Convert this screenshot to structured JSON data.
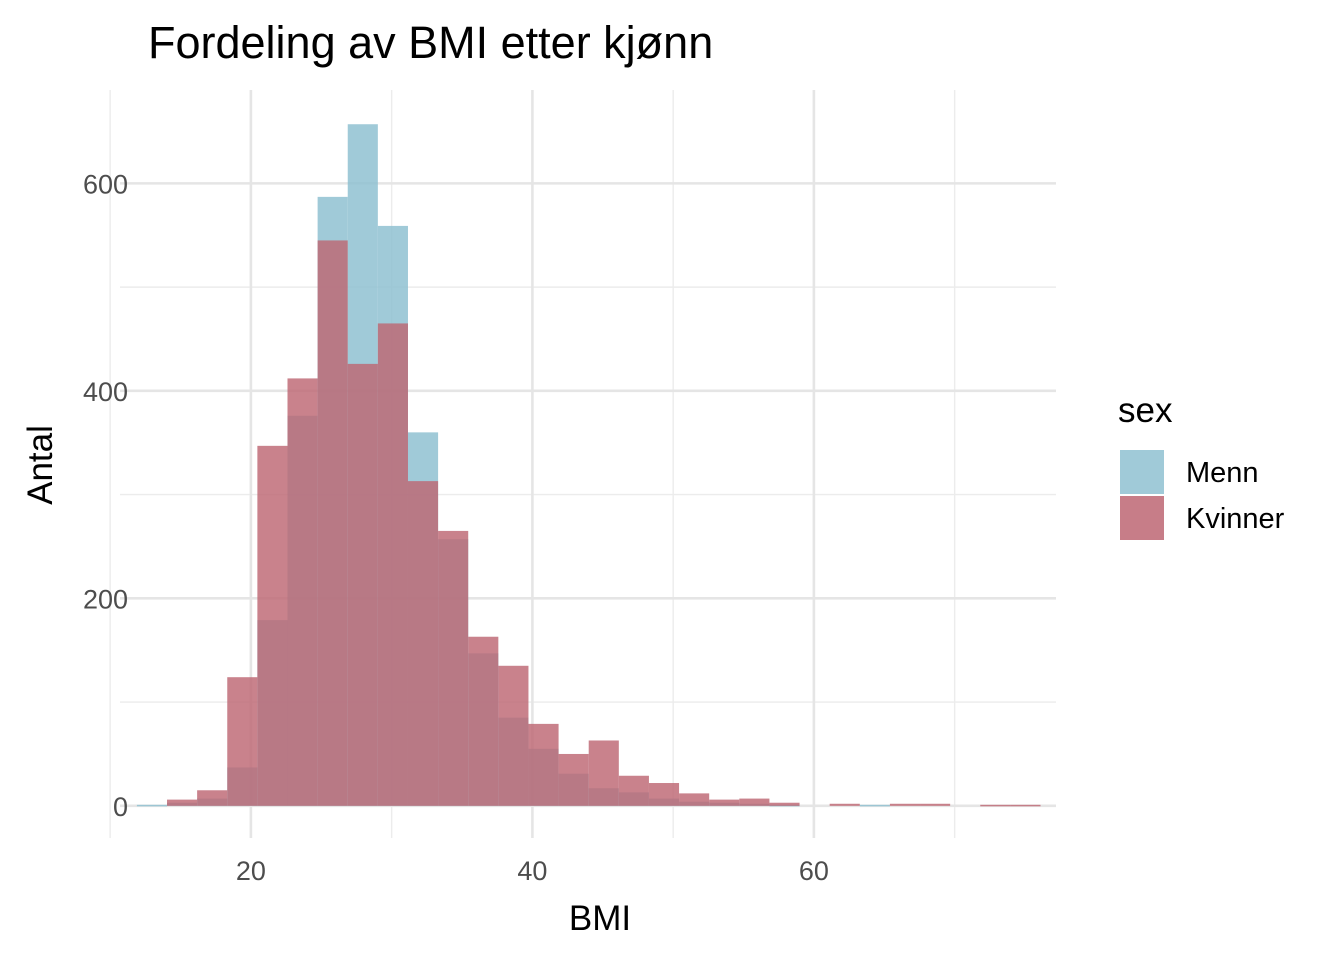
{
  "chart_data": {
    "type": "bar",
    "title": "Fordeling av BMI etter kjønn",
    "xlabel": "BMI",
    "ylabel": "Antal",
    "xlim": [
      10.7,
      77.2
    ],
    "ylim": [
      -31,
      690
    ],
    "x_ticks": [
      20,
      40,
      60
    ],
    "x_tick_labels": [
      "20",
      "40",
      "60"
    ],
    "y_ticks": [
      0,
      200,
      400,
      600
    ],
    "y_tick_labels": [
      "0",
      "200",
      "400",
      "600"
    ],
    "x_minor_ticks": [
      10,
      30,
      50,
      70
    ],
    "y_minor_ticks": [
      100,
      300,
      500
    ],
    "grid": true,
    "bin_width": 2.14,
    "bin_starts": [
      11.9,
      14.04,
      16.18,
      18.32,
      20.46,
      22.6,
      24.74,
      26.88,
      29.02,
      31.16,
      33.3,
      35.44,
      37.58,
      39.72,
      41.86,
      44.0,
      46.14,
      48.28,
      50.42,
      52.56,
      54.7,
      56.84,
      58.98,
      61.12,
      63.26,
      65.4,
      67.54,
      69.68,
      71.82,
      73.96
    ],
    "legend": {
      "title": "sex",
      "position": "right"
    },
    "series": [
      {
        "name": "Menn",
        "color": "#8fc1d1",
        "values": [
          1,
          3,
          7,
          37,
          179,
          376,
          587,
          657,
          559,
          360,
          257,
          147,
          85,
          55,
          31,
          17,
          13,
          7,
          4,
          3,
          2,
          1,
          0,
          0,
          1,
          0,
          0,
          0,
          0,
          0
        ]
      },
      {
        "name": "Kvinner",
        "color": "#bd6673",
        "values": [
          0,
          6,
          15,
          124,
          347,
          412,
          545,
          426,
          465,
          313,
          265,
          163,
          135,
          79,
          50,
          63,
          29,
          22,
          12,
          6,
          7,
          3,
          0,
          2,
          0,
          2,
          2,
          0,
          1,
          1
        ]
      }
    ]
  }
}
